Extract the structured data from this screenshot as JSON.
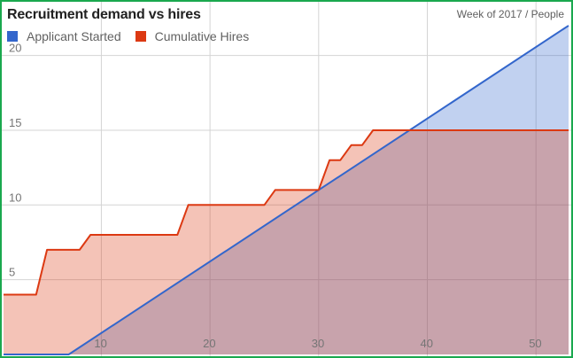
{
  "chart_data": {
    "type": "area",
    "title": "Recruitment demand vs hires",
    "units_label": "Week of 2017 / People",
    "xlim": [
      1,
      53
    ],
    "ylim": [
      0,
      23
    ],
    "x_ticks": [
      10,
      20,
      30,
      40,
      50
    ],
    "y_ticks": [
      5,
      10,
      15,
      20
    ],
    "grid": true,
    "legend_position": "top-left",
    "series": [
      {
        "name": "Applicant Started",
        "color": "#3366cc",
        "fill": "#c2d1ef",
        "points": [
          [
            1,
            0
          ],
          [
            7,
            0
          ],
          [
            53,
            22
          ]
        ]
      },
      {
        "name": "Cumulative Hires",
        "color": "#dc3912",
        "fill": "#f5c5b8",
        "points": [
          [
            1,
            4
          ],
          [
            4,
            4
          ],
          [
            5,
            7
          ],
          [
            8,
            7
          ],
          [
            9,
            8
          ],
          [
            17,
            8
          ],
          [
            18,
            10
          ],
          [
            25,
            10
          ],
          [
            26,
            11
          ],
          [
            30,
            11
          ],
          [
            31,
            13
          ],
          [
            32,
            13
          ],
          [
            33,
            14
          ],
          [
            34,
            14
          ],
          [
            35,
            15
          ],
          [
            53,
            15
          ]
        ]
      }
    ]
  }
}
